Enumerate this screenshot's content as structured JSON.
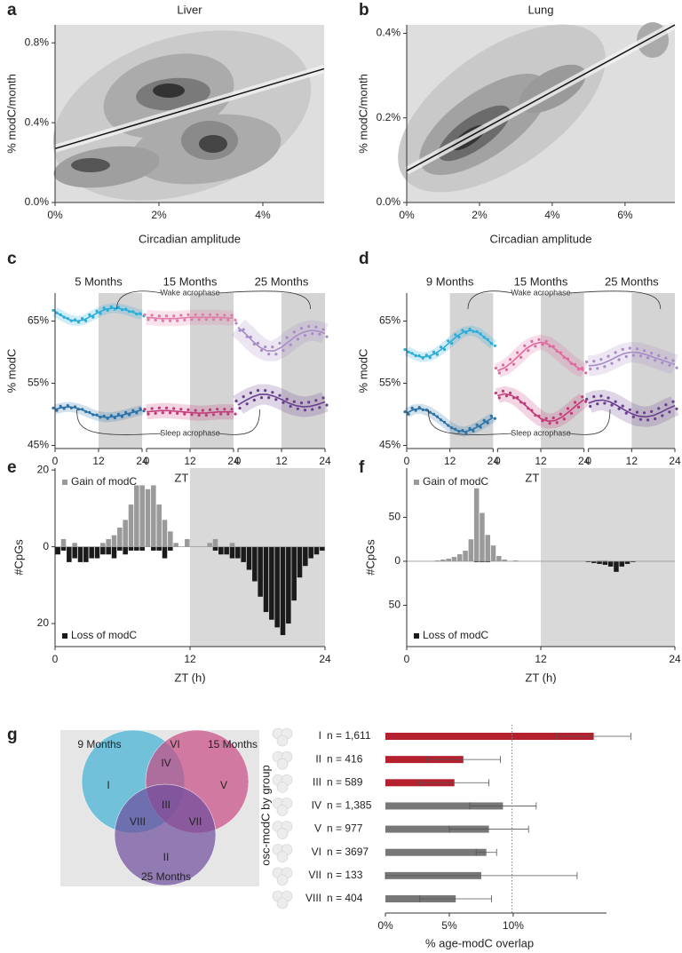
{
  "chart_data": [
    {
      "type": "density",
      "label": "a",
      "title": "Liver",
      "xlabel": "Circadian amplitude",
      "ylabel": "% modC/month",
      "xlim": [
        0,
        5.18
      ],
      "ylim": [
        0,
        0.89
      ],
      "xticks": [
        {
          "value": 0,
          "label": "0%"
        },
        {
          "value": 2,
          "label": "2%"
        },
        {
          "value": 4,
          "label": "4%"
        }
      ],
      "yticks": [
        {
          "value": 0,
          "label": "0.0%"
        },
        {
          "value": 0.4,
          "label": "0.4%"
        },
        {
          "value": 0.8,
          "label": "0.8%"
        }
      ],
      "fit": {
        "x": [
          0,
          5.18
        ],
        "y": [
          0.27,
          0.67
        ]
      }
    },
    {
      "type": "density",
      "label": "b",
      "title": "Lung",
      "xlabel": "Circadian amplitude",
      "ylabel": "% modC/month",
      "xlim": [
        0,
        7.37
      ],
      "ylim": [
        0,
        0.42
      ],
      "xticks": [
        {
          "value": 0,
          "label": "0%"
        },
        {
          "value": 2,
          "label": "2%"
        },
        {
          "value": 4,
          "label": "4%"
        },
        {
          "value": 6,
          "label": "6%"
        }
      ],
      "yticks": [
        {
          "value": 0,
          "label": "0.0%"
        },
        {
          "value": 0.2,
          "label": "0.2%"
        },
        {
          "value": 0.4,
          "label": "0.4%"
        }
      ],
      "fit": {
        "x": [
          0,
          7.37
        ],
        "y": [
          0.075,
          0.42
        ]
      }
    },
    {
      "type": "rhythm",
      "label": "c",
      "xlabel": "ZT (h)",
      "ylabel": "% modC",
      "ylim": [
        44.5,
        69.5
      ],
      "yticks": [
        {
          "value": 45,
          "label": "45%"
        },
        {
          "value": 55,
          "label": "55%"
        },
        {
          "value": 65,
          "label": "65%"
        }
      ],
      "xlim": [
        0,
        24
      ],
      "xticks": [
        0,
        12,
        24
      ],
      "shade": [
        12,
        24
      ],
      "x": [
        0,
        2,
        4,
        6,
        8,
        10,
        12,
        14,
        16,
        18,
        20,
        22,
        24
      ],
      "annotations": [
        "Wake acrophase",
        "Sleep acrophase"
      ],
      "panels": [
        {
          "title": "5 Months",
          "series": [
            {
              "color": "#27aedb",
              "values": [
                66.5,
                65.8,
                65.2,
                65.0,
                65.2,
                65.8,
                66.4,
                66.9,
                67.1,
                67.0,
                66.7,
                66.3,
                66.0
              ]
            },
            {
              "color": "#2a72a8",
              "values": [
                50.8,
                51.1,
                51.2,
                51.0,
                50.6,
                50.1,
                49.7,
                49.5,
                49.6,
                49.8,
                50.1,
                50.4,
                50.7
              ]
            }
          ]
        },
        {
          "title": "15 Months",
          "series": [
            {
              "color": "#e07aa8",
              "values": [
                65.6,
                65.5,
                65.4,
                65.4,
                65.4,
                65.5,
                65.6,
                65.6,
                65.6,
                65.6,
                65.6,
                65.5,
                65.5
              ]
            },
            {
              "color": "#c23a7a",
              "values": [
                50.4,
                50.5,
                50.6,
                50.6,
                50.5,
                50.4,
                50.3,
                50.2,
                50.2,
                50.3,
                50.4,
                50.4,
                50.4
              ]
            }
          ]
        },
        {
          "title": "25 Months",
          "series": [
            {
              "color": "#a98cc7",
              "values": [
                64.0,
                63.0,
                61.8,
                60.8,
                60.2,
                60.2,
                60.8,
                61.7,
                62.6,
                63.2,
                63.5,
                63.4,
                63.0
              ]
            },
            {
              "color": "#6a3f8f",
              "values": [
                51.5,
                52.2,
                52.8,
                53.2,
                53.2,
                52.9,
                52.4,
                51.8,
                51.4,
                51.2,
                51.3,
                51.6,
                52.0
              ]
            }
          ]
        }
      ]
    },
    {
      "type": "rhythm",
      "label": "d",
      "xlabel": "ZT (h)",
      "ylabel": "% modC",
      "ylim": [
        44.5,
        69.5
      ],
      "yticks": [
        {
          "value": 45,
          "label": "45%"
        },
        {
          "value": 55,
          "label": "55%"
        },
        {
          "value": 65,
          "label": "65%"
        }
      ],
      "xlim": [
        0,
        24
      ],
      "xticks": [
        0,
        12,
        24
      ],
      "shade": [
        12,
        24
      ],
      "x": [
        0,
        2,
        4,
        6,
        8,
        10,
        12,
        14,
        16,
        18,
        20,
        22,
        24
      ],
      "annotations": [
        "Wake acrophase",
        "Sleep acrophase"
      ],
      "panels": [
        {
          "title": "9 Months",
          "series": [
            {
              "color": "#27aedb",
              "values": [
                60.2,
                59.6,
                59.2,
                59.3,
                59.8,
                60.6,
                61.6,
                62.6,
                63.3,
                63.5,
                63.1,
                62.2,
                61.2
              ]
            },
            {
              "color": "#2a72a8",
              "values": [
                50.2,
                50.8,
                50.9,
                50.5,
                49.8,
                48.9,
                48.0,
                47.4,
                47.2,
                47.5,
                48.1,
                48.8,
                49.5
              ]
            }
          ]
        },
        {
          "title": "15 Months",
          "series": [
            {
              "color": "#e06a9e",
              "values": [
                57.0,
                57.5,
                58.4,
                59.5,
                60.6,
                61.3,
                61.6,
                61.3,
                60.5,
                59.5,
                58.5,
                57.6,
                57.0
              ]
            },
            {
              "color": "#c23a7a",
              "values": [
                53.0,
                53.3,
                53.0,
                52.3,
                51.3,
                50.2,
                49.3,
                48.9,
                49.0,
                49.6,
                50.5,
                51.5,
                52.4
              ]
            }
          ]
        },
        {
          "title": "25 Months",
          "series": [
            {
              "color": "#a98cc7",
              "values": [
                57.8,
                57.9,
                58.2,
                58.7,
                59.3,
                59.8,
                60.0,
                59.9,
                59.6,
                59.2,
                58.8,
                58.4,
                58.0
              ]
            },
            {
              "color": "#6a3f8f",
              "values": [
                51.8,
                52.2,
                52.3,
                52.0,
                51.4,
                50.7,
                50.1,
                49.7,
                49.6,
                49.8,
                50.3,
                50.9,
                51.4
              ]
            }
          ]
        }
      ]
    },
    {
      "type": "histogram",
      "label": "e",
      "xlabel": "ZT (h)",
      "ylabel": "#CpGs",
      "bins": [
        0,
        0.5,
        1,
        1.5,
        2,
        2.5,
        3,
        3.5,
        4,
        4.5,
        5,
        5.5,
        6,
        6.5,
        7,
        7.5,
        8,
        8.5,
        9,
        9.5,
        10,
        10.5,
        11,
        11.5,
        12,
        12.5,
        13,
        13.5,
        14,
        14.5,
        15,
        15.5,
        16,
        16.5,
        17,
        17.5,
        18,
        18.5,
        19,
        19.5,
        20,
        20.5,
        21,
        21.5,
        22,
        22.5,
        23,
        23.5,
        24
      ],
      "series": [
        {
          "name": "Gain of modC",
          "color": "#9a9a9a",
          "values": [
            0,
            2,
            0,
            1,
            0,
            0,
            0,
            0,
            1,
            2,
            3,
            5,
            7,
            11,
            16,
            16,
            15,
            16,
            11,
            7,
            4,
            1,
            0,
            2,
            0,
            0,
            0,
            1,
            2,
            0,
            0,
            1,
            0,
            0,
            0,
            0,
            0,
            0,
            0,
            0,
            0,
            0,
            0,
            0,
            0,
            0,
            0,
            0
          ]
        },
        {
          "name": "Loss of modC",
          "color": "#1a1a1a",
          "values": [
            -2,
            -1,
            -4,
            -3,
            -4,
            -4,
            -3,
            -3,
            -2,
            -2,
            -3,
            -1,
            -2,
            -1,
            -1,
            -1,
            0,
            -1,
            -1,
            -3,
            -1,
            0,
            0,
            0,
            0,
            0,
            0,
            0,
            -1,
            -2,
            -2,
            -3,
            -3,
            -4,
            -6,
            -9,
            -13,
            -17,
            -19,
            -21,
            -23,
            -20,
            -14,
            -8,
            -5,
            -3,
            -2,
            -1
          ]
        }
      ],
      "xlim": [
        0,
        24
      ],
      "xticks": [
        0,
        12,
        24
      ],
      "shade": [
        12,
        24
      ],
      "ylim": [
        -26,
        20.5
      ],
      "yticks": [
        {
          "value": -20,
          "label": "20"
        },
        0,
        20
      ]
    },
    {
      "type": "histogram",
      "label": "f",
      "xlabel": "ZT (h)",
      "ylabel": "#CpGs",
      "bins": [
        0,
        0.5,
        1,
        1.5,
        2,
        2.5,
        3,
        3.5,
        4,
        4.5,
        5,
        5.5,
        6,
        6.5,
        7,
        7.5,
        8,
        8.5,
        9,
        9.5,
        10,
        10.5,
        11,
        11.5,
        12,
        12.5,
        13,
        13.5,
        14,
        14.5,
        15,
        15.5,
        16,
        16.5,
        17,
        17.5,
        18,
        18.5,
        19,
        19.5,
        20,
        20.5,
        21,
        21.5,
        22,
        22.5,
        23,
        23.5,
        24
      ],
      "series": [
        {
          "name": "Gain of modC",
          "color": "#9a9a9a",
          "values": [
            0,
            0,
            0,
            0,
            0,
            1,
            2,
            3,
            5,
            8,
            12,
            25,
            83,
            55,
            30,
            18,
            6,
            2,
            0,
            1,
            0,
            0,
            0,
            0,
            0,
            0,
            0,
            0,
            0,
            0,
            0,
            0,
            0,
            0,
            1,
            1,
            0,
            0,
            0,
            0,
            0,
            0,
            0,
            0,
            0,
            0,
            0,
            0
          ]
        },
        {
          "name": "Loss of modC",
          "color": "#1a1a1a",
          "values": [
            0,
            0,
            0,
            0,
            0,
            0,
            0,
            0,
            0,
            0,
            0,
            0,
            -1,
            -1,
            -1,
            0,
            0,
            0,
            0,
            0,
            0,
            0,
            0,
            0,
            0,
            0,
            0,
            0,
            0,
            0,
            0,
            0,
            -1,
            -2,
            -3,
            -4,
            -6,
            -12,
            -6,
            -3,
            -1,
            0,
            0,
            0,
            0,
            0,
            0,
            0
          ]
        }
      ],
      "xlim": [
        0,
        24
      ],
      "xticks": [
        0,
        12,
        24
      ],
      "shade": [
        12,
        24
      ],
      "ylim": [
        -97,
        106
      ],
      "yticks": [
        {
          "value": -50,
          "label": "50"
        },
        0,
        50
      ]
    },
    {
      "type": "venn",
      "label": "g",
      "sets": [
        {
          "name": "9 Months",
          "color": "#3fb0d4"
        },
        {
          "name": "15 Months",
          "color": "#c84a83"
        },
        {
          "name": "25 Months",
          "color": "#6e4c9c"
        }
      ],
      "regions": [
        "VI",
        "I",
        "IV",
        "V",
        "III",
        "VIII",
        "VII",
        "II"
      ]
    },
    {
      "type": "hbar",
      "xlabel": "% age-modC overlap",
      "ylabel": "osc-modC by group",
      "categories": [
        "I",
        "II",
        "III",
        "IV",
        "V",
        "VI",
        "VII",
        "VIII"
      ],
      "counts": [
        "n = 1,611",
        "n = 416",
        "n = 589",
        "n = 1,385",
        "n = 977",
        "n = 3697",
        "n = 133",
        "n = 404"
      ],
      "values": [
        16.3,
        6.1,
        5.4,
        9.2,
        8.1,
        7.9,
        7.5,
        5.5
      ],
      "errors": [
        2.9,
        2.9,
        2.7,
        2.6,
        3.1,
        0.8,
        7.5,
        2.8
      ],
      "colors": [
        "#b5202e",
        "#b5202e",
        "#b5202e",
        "#777777",
        "#777777",
        "#777777",
        "#777777",
        "#777777"
      ],
      "xlim": [
        0,
        17.3
      ],
      "xticks": [
        {
          "value": 0,
          "label": "0%"
        },
        {
          "value": 5,
          "label": "5%"
        },
        {
          "value": 10,
          "label": "10%"
        }
      ],
      "refline": 9.9
    }
  ]
}
